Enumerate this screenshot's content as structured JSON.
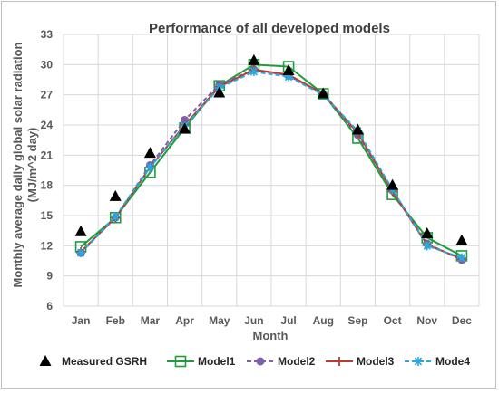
{
  "chart_data": {
    "type": "line",
    "title": "Performance of all developed models",
    "xlabel": "Month",
    "ylabel": "Monthly average daily global solar radiation (MJ/m^2 day)",
    "ylim": [
      6,
      33
    ],
    "yticks": [
      "6",
      "9",
      "12",
      "15",
      "18",
      "21",
      "24",
      "27",
      "30",
      "33"
    ],
    "categories": [
      "Jan",
      "Feb",
      "Mar",
      "Apr",
      "May",
      "Jun",
      "Jul",
      "Aug",
      "Sep",
      "Oct",
      "Nov",
      "Dec"
    ],
    "grid": true,
    "legend_position": "bottom",
    "series": [
      {
        "name": "Measured GSRH",
        "color": "#000000",
        "marker": "triangle",
        "line": "none",
        "values": [
          13.4,
          16.9,
          21.2,
          23.6,
          27.2,
          30.4,
          29.4,
          27.1,
          23.5,
          18.0,
          13.2,
          12.5
        ]
      },
      {
        "name": "Model1",
        "color": "#1e9e3a",
        "marker": "square",
        "line": "solid",
        "values": [
          11.9,
          14.8,
          19.3,
          23.7,
          27.9,
          30.0,
          29.8,
          27.1,
          22.7,
          17.1,
          12.8,
          11.0
        ]
      },
      {
        "name": "Model2",
        "color": "#7e60a8",
        "marker": "circle",
        "line": "dashed",
        "values": [
          11.3,
          14.8,
          20.0,
          24.5,
          28.0,
          29.5,
          28.9,
          27.1,
          23.0,
          17.5,
          12.2,
          10.6
        ]
      },
      {
        "name": "Model3",
        "color": "#c0392b",
        "marker": "plus",
        "line": "solid",
        "values": [
          11.4,
          14.8,
          19.8,
          24.0,
          27.8,
          29.5,
          29.0,
          27.1,
          23.2,
          17.4,
          12.1,
          10.7
        ]
      },
      {
        "name": "Mode4",
        "color": "#26a9e0",
        "marker": "star",
        "line": "dashed",
        "values": [
          11.3,
          14.9,
          19.8,
          23.9,
          27.7,
          29.3,
          28.8,
          27.0,
          23.4,
          17.6,
          12.0,
          10.8
        ]
      }
    ]
  }
}
